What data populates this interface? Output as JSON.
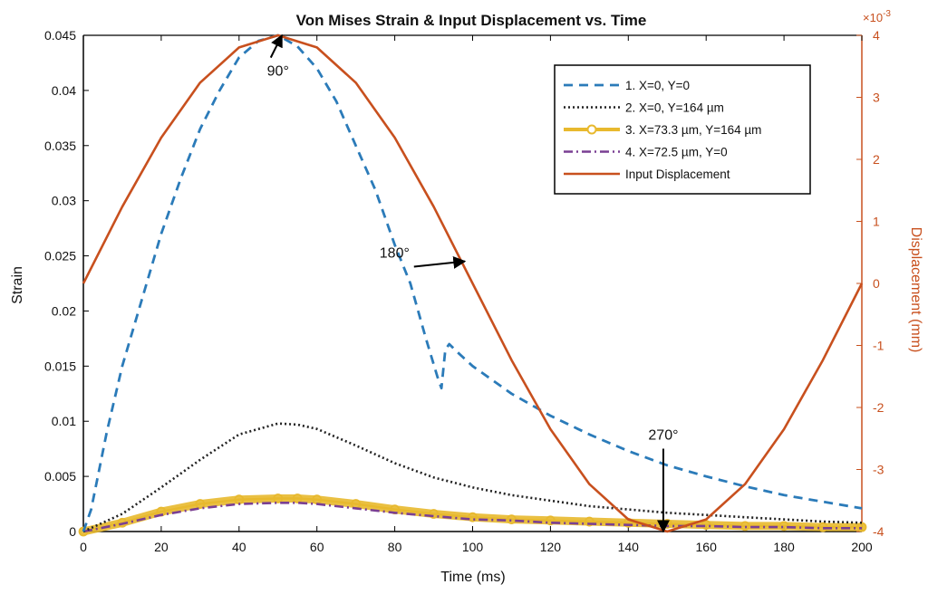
{
  "chart_data": {
    "type": "line",
    "title": "Von Mises Strain & Input Displacement vs. Time",
    "xlabel": "Time (ms)",
    "ylabel": "Strain",
    "y2label": "Displacement (mm)",
    "y2_exponent_label": "×10",
    "y2_exponent_power": "-3",
    "xlim": [
      0,
      200
    ],
    "ylim": [
      0,
      0.045
    ],
    "y2lim": [
      -4,
      4
    ],
    "x_ticks": [
      0,
      20,
      40,
      60,
      80,
      100,
      120,
      140,
      160,
      180,
      200
    ],
    "x_tick_labels": [
      "0",
      "20",
      "40",
      "60",
      "80",
      "100",
      "120",
      "140",
      "160",
      "180",
      "200"
    ],
    "y_ticks": [
      0,
      0.005,
      0.01,
      0.015,
      0.02,
      0.025,
      0.03,
      0.035,
      0.04,
      0.045
    ],
    "y_tick_labels": [
      "0",
      "0.005",
      "0.01",
      "0.015",
      "0.02",
      "0.025",
      "0.03",
      "0.035",
      "0.04",
      "0.045"
    ],
    "y2_ticks": [
      -4,
      -3,
      -2,
      -1,
      0,
      1,
      2,
      3,
      4
    ],
    "y2_tick_labels": [
      "-4",
      "-3",
      "-2",
      "-1",
      "0",
      "1",
      "2",
      "3",
      "4"
    ],
    "grid": false,
    "legend_position": "top-right",
    "series": [
      {
        "name": "1. X=0, Y=0",
        "axis": "left",
        "style": "dashed",
        "color": "#2b7bb9",
        "x": [
          0,
          2,
          6,
          10,
          15,
          20,
          25,
          30,
          35,
          40,
          45,
          50,
          55,
          60,
          65,
          70,
          75,
          80,
          84,
          88,
          91,
          92,
          93,
          94,
          96,
          100,
          110,
          120,
          130,
          140,
          150,
          160,
          170,
          180,
          190,
          200
        ],
        "y": [
          0,
          0.002,
          0.009,
          0.015,
          0.021,
          0.027,
          0.032,
          0.0365,
          0.04,
          0.043,
          0.0445,
          0.045,
          0.044,
          0.042,
          0.039,
          0.035,
          0.031,
          0.026,
          0.0225,
          0.0175,
          0.014,
          0.013,
          0.0165,
          0.017,
          0.0163,
          0.015,
          0.0125,
          0.0105,
          0.0088,
          0.0073,
          0.006,
          0.005,
          0.0041,
          0.0033,
          0.0027,
          0.0021
        ]
      },
      {
        "name": "2. X=0, Y=164 µm",
        "axis": "left",
        "style": "dotted",
        "color": "#222222",
        "x": [
          0,
          10,
          20,
          30,
          40,
          50,
          55,
          60,
          70,
          80,
          90,
          100,
          110,
          120,
          130,
          140,
          150,
          160,
          170,
          180,
          190,
          200
        ],
        "y": [
          0,
          0.0016,
          0.004,
          0.0065,
          0.0088,
          0.0098,
          0.0097,
          0.0093,
          0.0078,
          0.0062,
          0.0049,
          0.004,
          0.0033,
          0.0028,
          0.0023,
          0.002,
          0.0017,
          0.0015,
          0.0013,
          0.0011,
          0.0009,
          0.0008
        ]
      },
      {
        "name": "3. X=73.3 µm, Y=164 µm",
        "axis": "left",
        "style": "solid-marker",
        "color": "#e8b92e",
        "x": [
          0,
          10,
          20,
          30,
          40,
          50,
          55,
          60,
          70,
          80,
          90,
          100,
          110,
          120,
          130,
          140,
          150,
          160,
          170,
          180,
          190,
          200
        ],
        "y": [
          0,
          0.0008,
          0.0018,
          0.0025,
          0.0029,
          0.003,
          0.003,
          0.0029,
          0.0025,
          0.002,
          0.0016,
          0.0013,
          0.0011,
          0.001,
          0.0009,
          0.0008,
          0.0007,
          0.0006,
          0.0005,
          0.0005,
          0.0004,
          0.0004
        ]
      },
      {
        "name": "4. X=72.5 µm, Y=0",
        "axis": "left",
        "style": "dash-dot",
        "color": "#7a3f93",
        "x": [
          0,
          10,
          20,
          30,
          40,
          50,
          55,
          60,
          70,
          80,
          90,
          100,
          110,
          120,
          130,
          140,
          150,
          160,
          170,
          180,
          190,
          200
        ],
        "y": [
          0,
          0.0007,
          0.0015,
          0.0021,
          0.0025,
          0.0026,
          0.0026,
          0.0025,
          0.0021,
          0.0017,
          0.0014,
          0.0011,
          0.001,
          0.0008,
          0.0007,
          0.0006,
          0.0005,
          0.0005,
          0.0004,
          0.0004,
          0.0003,
          0.0003
        ]
      },
      {
        "name": "Input Displacement",
        "axis": "right",
        "style": "solid",
        "color": "#c8501e",
        "x": [
          0,
          10,
          20,
          30,
          40,
          50,
          60,
          70,
          80,
          90,
          100,
          110,
          120,
          130,
          140,
          150,
          160,
          170,
          180,
          190,
          200
        ],
        "y": [
          0,
          1.236,
          2.351,
          3.236,
          3.804,
          4,
          3.804,
          3.236,
          2.351,
          1.236,
          0,
          -1.236,
          -2.351,
          -3.236,
          -3.804,
          -4,
          -3.804,
          -3.236,
          -2.351,
          -1.236,
          0
        ]
      }
    ],
    "annotations": [
      {
        "text": "90°",
        "x": 50,
        "y": 0.0415,
        "arrow_to": [
          51,
          0.045
        ]
      },
      {
        "text": "180°",
        "x": 84,
        "y": 0.025,
        "arrow_to": [
          98,
          0.0245
        ]
      },
      {
        "text": "270°",
        "x": 149,
        "y": 0.0085,
        "arrow_to": [
          149,
          0
        ]
      }
    ]
  }
}
